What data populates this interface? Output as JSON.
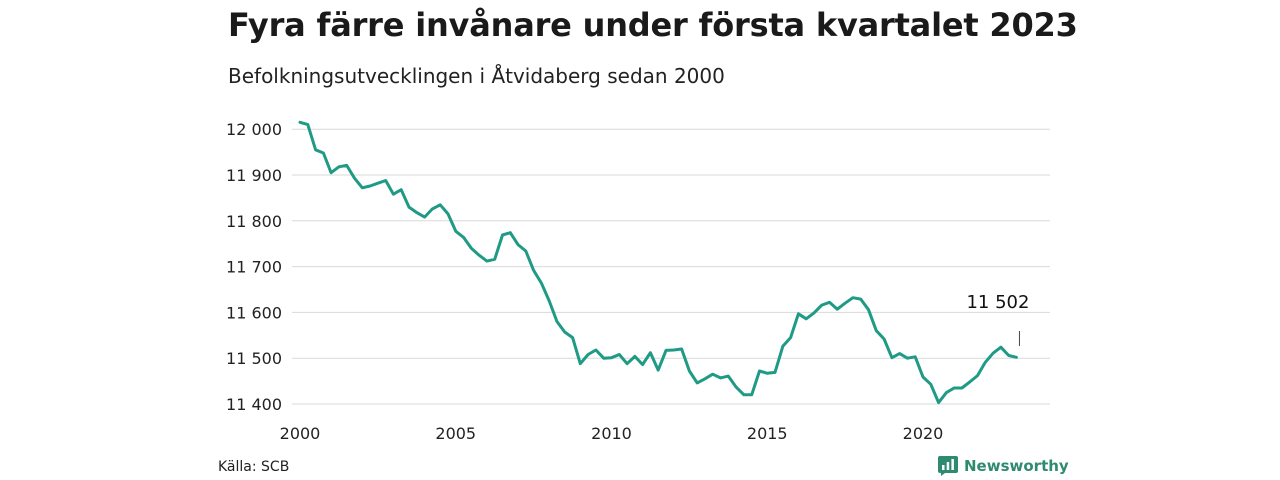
{
  "header": {
    "title": "Fyra färre invånare under första kvartalet 2023",
    "subtitle": "Befolkningsutvecklingen i Åtvidaberg sedan 2000"
  },
  "footer": {
    "source": "Källa: SCB",
    "brand": "Newsworthy"
  },
  "colors": {
    "line": "#1f9a85",
    "grid": "#d9d9d9",
    "brand": "#2e8b6f"
  },
  "chart_data": {
    "type": "line",
    "title": "Fyra färre invånare under första kvartalet 2023",
    "subtitle": "Befolkningsutvecklingen i Åtvidaberg sedan 2000",
    "xlabel": "",
    "ylabel": "",
    "xlim": [
      2000,
      2024.5
    ],
    "ylim": [
      11390,
      12030
    ],
    "x_ticks": [
      2000,
      2005,
      2010,
      2015,
      2020
    ],
    "x_tick_labels": [
      "2000",
      "2005",
      "2010",
      "2015",
      "2020"
    ],
    "y_ticks": [
      11400,
      11500,
      11600,
      11700,
      11800,
      11900,
      12000
    ],
    "y_tick_labels": [
      "11 400",
      "11 500",
      "11 600",
      "11 700",
      "11 800",
      "11 900",
      "12 000"
    ],
    "grid": true,
    "annotation": {
      "label": "11 502",
      "x": 2023.0,
      "y": 11502
    },
    "series": [
      {
        "x": [
          2000.0,
          2000.25,
          2000.5,
          2000.75,
          2001.0,
          2001.25,
          2001.5,
          2001.75,
          2002.0,
          2002.25,
          2002.5,
          2002.75,
          2003.0,
          2003.25,
          2003.5,
          2003.75,
          2004.0,
          2004.25,
          2004.5,
          2004.75,
          2005.0,
          2005.25,
          2005.5,
          2005.75,
          2006.0,
          2006.25,
          2006.5,
          2006.75,
          2007.0,
          2007.25,
          2007.5,
          2007.75,
          2008.0,
          2008.25,
          2008.5,
          2008.75,
          2009.0,
          2009.25,
          2009.5,
          2009.75,
          2010.0,
          2010.25,
          2010.5,
          2010.75,
          2011.0,
          2011.25,
          2011.5,
          2011.75,
          2012.0,
          2012.25,
          2012.5,
          2012.75,
          2013.0,
          2013.25,
          2013.5,
          2013.75,
          2014.0,
          2014.25,
          2014.5,
          2014.75,
          2015.0,
          2015.25,
          2015.5,
          2015.75,
          2016.0,
          2016.25,
          2016.5,
          2016.75,
          2017.0,
          2017.25,
          2017.5,
          2017.75,
          2018.0,
          2018.25,
          2018.5,
          2018.75,
          2019.0,
          2019.25,
          2019.5,
          2019.75,
          2020.0,
          2020.25,
          2020.5,
          2020.75,
          2021.0,
          2021.25,
          2021.5,
          2021.75,
          2022.0,
          2022.25,
          2022.5,
          2022.75,
          2023.0
        ],
        "values": [
          12015,
          12010,
          11955,
          11948,
          11905,
          11918,
          11921,
          11893,
          11872,
          11876,
          11882,
          11888,
          11858,
          11868,
          11830,
          11818,
          11808,
          11826,
          11835,
          11815,
          11777,
          11764,
          11740,
          11725,
          11712,
          11716,
          11769,
          11774,
          11748,
          11734,
          11692,
          11664,
          11625,
          11580,
          11557,
          11545,
          11488,
          11508,
          11518,
          11500,
          11501,
          11508,
          11488,
          11504,
          11486,
          11512,
          11474,
          11517,
          11518,
          11520,
          11472,
          11446,
          11455,
          11465,
          11457,
          11461,
          11437,
          11420,
          11420,
          11472,
          11467,
          11469,
          11526,
          11545,
          11597,
          11586,
          11599,
          11616,
          11622,
          11607,
          11620,
          11632,
          11629,
          11606,
          11560,
          11542,
          11501,
          11510,
          11500,
          11503,
          11459,
          11443,
          11403,
          11425,
          11435,
          11435,
          11448,
          11462,
          11491,
          11511,
          11524,
          11506,
          11502
        ]
      }
    ]
  }
}
